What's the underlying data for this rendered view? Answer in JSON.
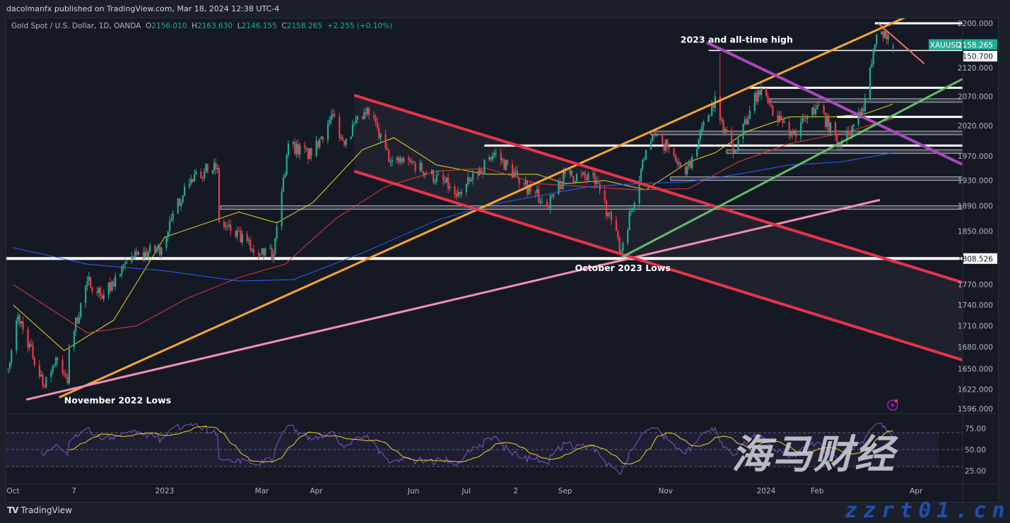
{
  "header": {
    "published": "dacolmanfx published on TradingView.com, Mar 18, 2024 12:38 UTC-4",
    "symbol": "Gold Spot / U.S. Dollar, 1D, OANDA",
    "o_label": "O",
    "o": "2156.010",
    "h_label": "H",
    "h": "2163.630",
    "l_label": "L",
    "l": "2146.155",
    "c_label": "C",
    "c": "2158.265",
    "change": "+2.255 (+0.10%)"
  },
  "footer": {
    "brand": "TradingView",
    "logo": "TV"
  },
  "watermark": {
    "cn": "海马财经",
    "url": "zzrt01.cn"
  },
  "colors": {
    "up": "#22ab94",
    "down": "#f23645",
    "ma50": "#e8d629",
    "ma100": "#e53935",
    "ma200": "#2962ff",
    "rsi": "#7e57c2",
    "rsi_signal": "#e8d629"
  },
  "chart_data": {
    "type": "candlestick",
    "symbol": "XAUUSD",
    "scale": "log",
    "ylim": [
      1596,
      2200
    ],
    "grid": false,
    "y_ticks": [
      2200,
      2120,
      2070,
      2020,
      1970,
      1930,
      1890,
      1850,
      1770,
      1740,
      1710,
      1680,
      1650,
      1622,
      1596
    ],
    "y_tick_labels": [
      "2200.000",
      "2120.000",
      "2070.000",
      "2020.000",
      "1970.000",
      "1930.000",
      "1890.000",
      "1850.000",
      "1770.000",
      "1740.000",
      "1710.000",
      "1680.000",
      "1650.000",
      "1622.000",
      "1596.000"
    ],
    "x_ticks": [
      {
        "date": "2022-10-01",
        "label": "Oct"
      },
      {
        "date": "2022-11-07",
        "label": "7"
      },
      {
        "date": "2023-01-01",
        "label": "2023"
      },
      {
        "date": "2023-03-01",
        "label": "Mar"
      },
      {
        "date": "2023-04-03",
        "label": "Apr"
      },
      {
        "date": "2023-06-01",
        "label": "Jun"
      },
      {
        "date": "2023-07-03",
        "label": "Jul"
      },
      {
        "date": "2023-08-02",
        "label": "2"
      },
      {
        "date": "2023-09-01",
        "label": "Sep"
      },
      {
        "date": "2023-11-01",
        "label": "Nov"
      },
      {
        "date": "2024-01-01",
        "label": "2024"
      },
      {
        "date": "2024-02-01",
        "label": "Feb"
      },
      {
        "date": "2024-04-01",
        "label": "Apr"
      }
    ],
    "price_labels": {
      "last_symbol": "XAUUSD",
      "last": "2158.265",
      "level_1": "2150.700",
      "level_2": "1808.526"
    },
    "close_path": [
      [
        "2022-09-28",
        1650
      ],
      [
        "2022-10-04",
        1725
      ],
      [
        "2022-10-20",
        1625
      ],
      [
        "2022-10-27",
        1665
      ],
      [
        "2022-11-03",
        1630
      ],
      [
        "2022-11-04",
        1680
      ],
      [
        "2022-11-15",
        1775
      ],
      [
        "2022-11-25",
        1755
      ],
      [
        "2022-12-13",
        1810
      ],
      [
        "2022-12-30",
        1825
      ],
      [
        "2023-01-13",
        1920
      ],
      [
        "2023-01-25",
        1945
      ],
      [
        "2023-02-02",
        1950
      ],
      [
        "2023-02-03",
        1865
      ],
      [
        "2023-02-28",
        1815
      ],
      [
        "2023-03-08",
        1815
      ],
      [
        "2023-03-17",
        1990
      ],
      [
        "2023-03-31",
        1970
      ],
      [
        "2023-04-13",
        2040
      ],
      [
        "2023-04-19",
        1995
      ],
      [
        "2023-05-03",
        2040
      ],
      [
        "2023-05-04",
        2050
      ],
      [
        "2023-05-18",
        1960
      ],
      [
        "2023-05-30",
        1960
      ],
      [
        "2023-06-23",
        1920
      ],
      [
        "2023-06-29",
        1908
      ],
      [
        "2023-07-20",
        1975
      ],
      [
        "2023-08-03",
        1935
      ],
      [
        "2023-08-21",
        1890
      ],
      [
        "2023-09-01",
        1940
      ],
      [
        "2023-09-20",
        1930
      ],
      [
        "2023-10-05",
        1820
      ],
      [
        "2023-10-06",
        1832
      ],
      [
        "2023-10-20",
        1980
      ],
      [
        "2023-10-27",
        2005
      ],
      [
        "2023-11-13",
        1940
      ],
      [
        "2023-12-01",
        2070
      ],
      [
        "2023-12-04",
        2030
      ],
      [
        "2023-12-13",
        1980
      ],
      [
        "2023-12-27",
        2080
      ],
      [
        "2024-01-17",
        2005
      ],
      [
        "2024-02-01",
        2055
      ],
      [
        "2024-02-14",
        1990
      ],
      [
        "2024-02-29",
        2045
      ],
      [
        "2024-03-08",
        2180
      ],
      [
        "2024-03-11",
        2185
      ],
      [
        "2024-03-18",
        2158.265
      ]
    ],
    "candle_overrides": [
      {
        "date": "2023-12-04",
        "high": 2146
      },
      {
        "date": "2024-03-18",
        "open": 2156.01,
        "high": 2163.63,
        "low": 2146.155,
        "close": 2158.265
      }
    ],
    "moving_averages": [
      {
        "color": "#e8d629",
        "points": [
          [
            "2022-10-01",
            1740
          ],
          [
            "2022-11-01",
            1675
          ],
          [
            "2022-12-01",
            1718
          ],
          [
            "2023-01-01",
            1841
          ],
          [
            "2023-02-15",
            1880
          ],
          [
            "2023-03-10",
            1863
          ],
          [
            "2023-04-01",
            1895
          ],
          [
            "2023-05-01",
            1980
          ],
          [
            "2023-05-20",
            2000
          ],
          [
            "2023-06-15",
            1955
          ],
          [
            "2023-07-15",
            1940
          ],
          [
            "2023-08-15",
            1940
          ],
          [
            "2023-09-01",
            1925
          ],
          [
            "2023-09-25",
            1930
          ],
          [
            "2023-10-20",
            1915
          ],
          [
            "2023-11-15",
            1960
          ],
          [
            "2023-12-01",
            1975
          ],
          [
            "2023-12-20",
            2010
          ],
          [
            "2024-01-15",
            2035
          ],
          [
            "2024-02-10",
            2035
          ],
          [
            "2024-03-01",
            2040
          ],
          [
            "2024-03-18",
            2057
          ]
        ]
      },
      {
        "color": "#e53935",
        "points": [
          [
            "2022-10-01",
            1770
          ],
          [
            "2022-11-15",
            1700
          ],
          [
            "2022-12-15",
            1710
          ],
          [
            "2023-01-15",
            1750
          ],
          [
            "2023-02-15",
            1780
          ],
          [
            "2023-03-15",
            1800
          ],
          [
            "2023-04-15",
            1870
          ],
          [
            "2023-05-15",
            1920
          ],
          [
            "2023-06-15",
            1945
          ],
          [
            "2023-07-15",
            1950
          ],
          [
            "2023-08-15",
            1925
          ],
          [
            "2023-09-15",
            1920
          ],
          [
            "2023-10-15",
            1915
          ],
          [
            "2023-11-15",
            1917
          ],
          [
            "2023-12-15",
            1960
          ],
          [
            "2024-01-15",
            1990
          ],
          [
            "2024-02-15",
            2007
          ],
          [
            "2024-03-18",
            2032
          ]
        ]
      },
      {
        "color": "#2962ff",
        "points": [
          [
            "2022-10-01",
            1825
          ],
          [
            "2022-11-15",
            1800
          ],
          [
            "2023-01-01",
            1790
          ],
          [
            "2023-02-15",
            1775
          ],
          [
            "2023-03-20",
            1777
          ],
          [
            "2023-05-01",
            1817
          ],
          [
            "2023-06-15",
            1867
          ],
          [
            "2023-07-15",
            1890
          ],
          [
            "2023-08-15",
            1905
          ],
          [
            "2023-09-15",
            1920
          ],
          [
            "2023-10-15",
            1925
          ],
          [
            "2023-11-15",
            1928
          ],
          [
            "2023-12-15",
            1940
          ],
          [
            "2024-01-15",
            1955
          ],
          [
            "2024-02-15",
            1960
          ],
          [
            "2024-03-18",
            1975
          ]
        ]
      }
    ],
    "trend_lines": [
      {
        "color": "#f7a535",
        "from": [
          "2022-10-29",
          1611
        ],
        "to": [
          "2024-03-29",
          2216
        ]
      },
      {
        "color": "#f48fb1",
        "from": [
          "2022-10-09",
          1608
        ],
        "to": [
          "2024-03-10",
          1899
        ]
      },
      {
        "color": "#e8334a",
        "from": [
          "2023-04-26",
          2072
        ],
        "to": [
          "2024-04-29",
          1773
        ]
      },
      {
        "color": "#e8334a",
        "from": [
          "2023-04-26",
          1945
        ],
        "to": [
          "2024-04-29",
          1662
        ]
      },
      {
        "color": "#ab47bc",
        "from": [
          "2023-11-26",
          2165
        ],
        "to": [
          "2024-04-29",
          1956
        ]
      },
      {
        "color": "#66bb6a",
        "from": [
          "2023-10-05",
          1810
        ],
        "to": [
          "2024-04-29",
          2100
        ]
      },
      {
        "color": "#ef6f6f",
        "from": [
          "2024-03-09",
          2200
        ],
        "to": [
          "2024-04-06",
          2127
        ]
      }
    ],
    "horizontal_levels": [
      {
        "price": 2200,
        "from": "2024-03-07",
        "style": "white"
      },
      {
        "price": 2150.7,
        "from": "2023-11-27",
        "style": "white-thin"
      },
      {
        "price": 2085,
        "from": "2023-12-22",
        "style": "white"
      },
      {
        "price": 2063,
        "from": "2024-01-03",
        "style": "grey-zone"
      },
      {
        "price": 2035,
        "from": "2024-02-13",
        "style": "white"
      },
      {
        "price": 2008,
        "from": "2023-10-23",
        "style": "grey-zone"
      },
      {
        "price": 1987,
        "from": "2023-07-14",
        "style": "white"
      },
      {
        "price": 1977,
        "from": "2023-12-08",
        "style": "grey-zone"
      },
      {
        "price": 1933,
        "from": "2023-11-04",
        "style": "grey-zone"
      },
      {
        "price": 1887,
        "from": "2023-02-04",
        "style": "grey-zone"
      },
      {
        "price": 1808.526,
        "from": "2022-09-20",
        "style": "white-thick"
      }
    ],
    "annotations": [
      {
        "text": "2023 and all-time high",
        "date": "2023-11-10",
        "price": 2165
      },
      {
        "text": "October 2023 Lows",
        "date": "2023-09-07",
        "price": 1790
      },
      {
        "text": "November 2022 Lows",
        "date": "2022-11-01",
        "price": 1603
      }
    ],
    "rsi": {
      "period": 14,
      "signal_period": 14,
      "ticks": [
        75,
        50,
        25
      ],
      "tick_labels": [
        "75.00",
        "50.00",
        "25.00"
      ],
      "bands": [
        70,
        50,
        30
      ]
    }
  }
}
